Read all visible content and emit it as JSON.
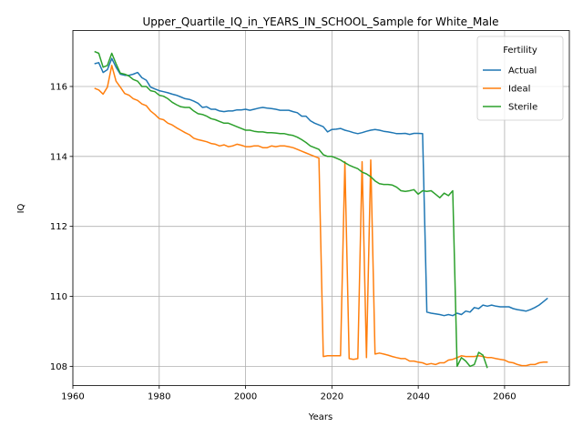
{
  "chart_data": {
    "type": "line",
    "title": "Upper_Quartile_IQ_in_YEARS_IN_SCHOOL_Sample for White_Male",
    "xlabel": "Years",
    "ylabel": "IQ",
    "xlim": [
      1960,
      2075
    ],
    "ylim": [
      107.45,
      117.6
    ],
    "xticks": [
      1960,
      1980,
      2000,
      2020,
      2040,
      2060
    ],
    "yticks": [
      108,
      110,
      112,
      114,
      116
    ],
    "grid": true,
    "legend": {
      "title": "Fertility",
      "placement": "top-right"
    },
    "series": [
      {
        "name": "Actual",
        "color": "#1f77b4",
        "points": [
          [
            1965,
            116.65
          ],
          [
            1966,
            116.68
          ],
          [
            1967,
            116.4
          ],
          [
            1968,
            116.48
          ],
          [
            1969,
            116.8
          ],
          [
            1970,
            116.55
          ],
          [
            1971,
            116.35
          ],
          [
            1972,
            116.32
          ],
          [
            1973,
            116.32
          ],
          [
            1974,
            116.35
          ],
          [
            1975,
            116.4
          ],
          [
            1976,
            116.25
          ],
          [
            1977,
            116.18
          ],
          [
            1978,
            115.98
          ],
          [
            1979,
            115.93
          ],
          [
            1980,
            115.88
          ],
          [
            1981,
            115.85
          ],
          [
            1982,
            115.82
          ],
          [
            1983,
            115.78
          ],
          [
            1984,
            115.75
          ],
          [
            1985,
            115.7
          ],
          [
            1986,
            115.65
          ],
          [
            1987,
            115.63
          ],
          [
            1988,
            115.58
          ],
          [
            1989,
            115.52
          ],
          [
            1990,
            115.4
          ],
          [
            1991,
            115.42
          ],
          [
            1992,
            115.35
          ],
          [
            1993,
            115.35
          ],
          [
            1994,
            115.3
          ],
          [
            1995,
            115.28
          ],
          [
            1996,
            115.3
          ],
          [
            1997,
            115.3
          ],
          [
            1998,
            115.33
          ],
          [
            1999,
            115.33
          ],
          [
            2000,
            115.35
          ],
          [
            2001,
            115.32
          ],
          [
            2002,
            115.35
          ],
          [
            2003,
            115.38
          ],
          [
            2004,
            115.4
          ],
          [
            2005,
            115.38
          ],
          [
            2006,
            115.37
          ],
          [
            2007,
            115.35
          ],
          [
            2008,
            115.32
          ],
          [
            2009,
            115.32
          ],
          [
            2010,
            115.32
          ],
          [
            2011,
            115.28
          ],
          [
            2012,
            115.25
          ],
          [
            2013,
            115.15
          ],
          [
            2014,
            115.15
          ],
          [
            2015,
            115.02
          ],
          [
            2016,
            114.95
          ],
          [
            2017,
            114.9
          ],
          [
            2018,
            114.85
          ],
          [
            2019,
            114.7
          ],
          [
            2020,
            114.77
          ],
          [
            2021,
            114.78
          ],
          [
            2022,
            114.8
          ],
          [
            2023,
            114.75
          ],
          [
            2024,
            114.72
          ],
          [
            2025,
            114.68
          ],
          [
            2026,
            114.65
          ],
          [
            2027,
            114.68
          ],
          [
            2028,
            114.72
          ],
          [
            2029,
            114.75
          ],
          [
            2030,
            114.77
          ],
          [
            2031,
            114.75
          ],
          [
            2032,
            114.72
          ],
          [
            2033,
            114.7
          ],
          [
            2034,
            114.68
          ],
          [
            2035,
            114.65
          ],
          [
            2036,
            114.65
          ],
          [
            2037,
            114.66
          ],
          [
            2038,
            114.63
          ],
          [
            2039,
            114.66
          ],
          [
            2040,
            114.66
          ],
          [
            2041,
            114.65
          ],
          [
            2042,
            109.55
          ],
          [
            2043,
            109.52
          ],
          [
            2044,
            109.5
          ],
          [
            2045,
            109.48
          ],
          [
            2046,
            109.45
          ],
          [
            2047,
            109.48
          ],
          [
            2048,
            109.45
          ],
          [
            2049,
            109.52
          ],
          [
            2050,
            109.48
          ],
          [
            2051,
            109.58
          ],
          [
            2052,
            109.55
          ],
          [
            2053,
            109.68
          ],
          [
            2054,
            109.65
          ],
          [
            2055,
            109.75
          ],
          [
            2056,
            109.72
          ],
          [
            2057,
            109.75
          ],
          [
            2058,
            109.72
          ],
          [
            2059,
            109.7
          ],
          [
            2060,
            109.7
          ],
          [
            2061,
            109.7
          ],
          [
            2062,
            109.65
          ],
          [
            2063,
            109.62
          ],
          [
            2064,
            109.6
          ],
          [
            2065,
            109.58
          ],
          [
            2066,
            109.62
          ],
          [
            2067,
            109.68
          ],
          [
            2068,
            109.75
          ],
          [
            2069,
            109.85
          ],
          [
            2070,
            109.95
          ]
        ]
      },
      {
        "name": "Ideal",
        "color": "#ff7f0e",
        "points": [
          [
            1965,
            115.95
          ],
          [
            1966,
            115.9
          ],
          [
            1967,
            115.78
          ],
          [
            1968,
            115.98
          ],
          [
            1969,
            116.6
          ],
          [
            1970,
            116.15
          ],
          [
            1971,
            115.98
          ],
          [
            1972,
            115.8
          ],
          [
            1973,
            115.75
          ],
          [
            1974,
            115.65
          ],
          [
            1975,
            115.6
          ],
          [
            1976,
            115.5
          ],
          [
            1977,
            115.45
          ],
          [
            1978,
            115.3
          ],
          [
            1979,
            115.2
          ],
          [
            1980,
            115.08
          ],
          [
            1981,
            115.05
          ],
          [
            1982,
            114.95
          ],
          [
            1983,
            114.9
          ],
          [
            1984,
            114.82
          ],
          [
            1985,
            114.75
          ],
          [
            1986,
            114.68
          ],
          [
            1987,
            114.62
          ],
          [
            1988,
            114.52
          ],
          [
            1989,
            114.48
          ],
          [
            1990,
            114.45
          ],
          [
            1991,
            114.42
          ],
          [
            1992,
            114.37
          ],
          [
            1993,
            114.35
          ],
          [
            1994,
            114.3
          ],
          [
            1995,
            114.33
          ],
          [
            1996,
            114.28
          ],
          [
            1997,
            114.3
          ],
          [
            1998,
            114.35
          ],
          [
            1999,
            114.32
          ],
          [
            2000,
            114.28
          ],
          [
            2001,
            114.28
          ],
          [
            2002,
            114.3
          ],
          [
            2003,
            114.3
          ],
          [
            2004,
            114.25
          ],
          [
            2005,
            114.25
          ],
          [
            2006,
            114.3
          ],
          [
            2007,
            114.28
          ],
          [
            2008,
            114.3
          ],
          [
            2009,
            114.3
          ],
          [
            2010,
            114.28
          ],
          [
            2011,
            114.25
          ],
          [
            2012,
            114.2
          ],
          [
            2013,
            114.15
          ],
          [
            2014,
            114.1
          ],
          [
            2015,
            114.05
          ],
          [
            2016,
            114.0
          ],
          [
            2017,
            113.95
          ],
          [
            2018,
            108.28
          ],
          [
            2019,
            108.3
          ],
          [
            2020,
            108.3
          ],
          [
            2021,
            108.3
          ],
          [
            2022,
            108.3
          ],
          [
            2023,
            113.85
          ],
          [
            2024,
            108.22
          ],
          [
            2025,
            108.2
          ],
          [
            2026,
            108.22
          ],
          [
            2027,
            113.85
          ],
          [
            2028,
            108.25
          ],
          [
            2029,
            113.9
          ],
          [
            2030,
            108.35
          ],
          [
            2031,
            108.38
          ],
          [
            2032,
            108.35
          ],
          [
            2033,
            108.32
          ],
          [
            2034,
            108.28
          ],
          [
            2035,
            108.25
          ],
          [
            2036,
            108.22
          ],
          [
            2037,
            108.22
          ],
          [
            2038,
            108.15
          ],
          [
            2039,
            108.15
          ],
          [
            2040,
            108.12
          ],
          [
            2041,
            108.1
          ],
          [
            2042,
            108.05
          ],
          [
            2043,
            108.08
          ],
          [
            2044,
            108.05
          ],
          [
            2045,
            108.1
          ],
          [
            2046,
            108.1
          ],
          [
            2047,
            108.18
          ],
          [
            2048,
            108.2
          ],
          [
            2049,
            108.25
          ],
          [
            2050,
            108.3
          ],
          [
            2051,
            108.28
          ],
          [
            2052,
            108.28
          ],
          [
            2053,
            108.28
          ],
          [
            2054,
            108.3
          ],
          [
            2055,
            108.28
          ],
          [
            2056,
            108.25
          ],
          [
            2057,
            108.25
          ],
          [
            2058,
            108.22
          ],
          [
            2059,
            108.2
          ],
          [
            2060,
            108.18
          ],
          [
            2061,
            108.12
          ],
          [
            2062,
            108.1
          ],
          [
            2063,
            108.05
          ],
          [
            2064,
            108.02
          ],
          [
            2065,
            108.02
          ],
          [
            2066,
            108.05
          ],
          [
            2067,
            108.05
          ],
          [
            2068,
            108.1
          ],
          [
            2069,
            108.12
          ],
          [
            2070,
            108.12
          ]
        ]
      },
      {
        "name": "Sterile",
        "color": "#2ca02c",
        "points": [
          [
            1965,
            117.0
          ],
          [
            1966,
            116.95
          ],
          [
            1967,
            116.55
          ],
          [
            1968,
            116.6
          ],
          [
            1969,
            116.95
          ],
          [
            1970,
            116.65
          ],
          [
            1971,
            116.38
          ],
          [
            1972,
            116.35
          ],
          [
            1973,
            116.3
          ],
          [
            1974,
            116.2
          ],
          [
            1975,
            116.15
          ],
          [
            1976,
            116.0
          ],
          [
            1977,
            116.0
          ],
          [
            1978,
            115.88
          ],
          [
            1979,
            115.85
          ],
          [
            1980,
            115.75
          ],
          [
            1981,
            115.72
          ],
          [
            1982,
            115.65
          ],
          [
            1983,
            115.55
          ],
          [
            1984,
            115.48
          ],
          [
            1985,
            115.42
          ],
          [
            1986,
            115.4
          ],
          [
            1987,
            115.4
          ],
          [
            1988,
            115.3
          ],
          [
            1989,
            115.22
          ],
          [
            1990,
            115.2
          ],
          [
            1991,
            115.15
          ],
          [
            1992,
            115.08
          ],
          [
            1993,
            115.05
          ],
          [
            1994,
            115.0
          ],
          [
            1995,
            114.95
          ],
          [
            1996,
            114.95
          ],
          [
            1997,
            114.9
          ],
          [
            1998,
            114.85
          ],
          [
            1999,
            114.8
          ],
          [
            2000,
            114.75
          ],
          [
            2001,
            114.75
          ],
          [
            2002,
            114.72
          ],
          [
            2003,
            114.7
          ],
          [
            2004,
            114.7
          ],
          [
            2005,
            114.68
          ],
          [
            2006,
            114.68
          ],
          [
            2007,
            114.67
          ],
          [
            2008,
            114.65
          ],
          [
            2009,
            114.65
          ],
          [
            2010,
            114.62
          ],
          [
            2011,
            114.6
          ],
          [
            2012,
            114.55
          ],
          [
            2013,
            114.48
          ],
          [
            2014,
            114.4
          ],
          [
            2015,
            114.3
          ],
          [
            2016,
            114.25
          ],
          [
            2017,
            114.2
          ],
          [
            2018,
            114.05
          ],
          [
            2019,
            114.0
          ],
          [
            2020,
            114.0
          ],
          [
            2021,
            113.95
          ],
          [
            2022,
            113.9
          ],
          [
            2023,
            113.82
          ],
          [
            2024,
            113.75
          ],
          [
            2025,
            113.7
          ],
          [
            2026,
            113.65
          ],
          [
            2027,
            113.55
          ],
          [
            2028,
            113.5
          ],
          [
            2029,
            113.42
          ],
          [
            2030,
            113.3
          ],
          [
            2031,
            113.22
          ],
          [
            2032,
            113.2
          ],
          [
            2033,
            113.2
          ],
          [
            2034,
            113.18
          ],
          [
            2035,
            113.12
          ],
          [
            2036,
            113.02
          ],
          [
            2037,
            113.0
          ],
          [
            2038,
            113.02
          ],
          [
            2039,
            113.05
          ],
          [
            2040,
            112.92
          ],
          [
            2041,
            113.02
          ],
          [
            2042,
            113.0
          ],
          [
            2043,
            113.02
          ],
          [
            2044,
            112.92
          ],
          [
            2045,
            112.82
          ],
          [
            2046,
            112.95
          ],
          [
            2047,
            112.88
          ],
          [
            2048,
            113.02
          ],
          [
            2049,
            108.0
          ],
          [
            2050,
            108.25
          ],
          [
            2051,
            108.15
          ],
          [
            2052,
            108.0
          ],
          [
            2053,
            108.05
          ],
          [
            2054,
            108.4
          ],
          [
            2055,
            108.32
          ],
          [
            2056,
            107.95
          ]
        ]
      }
    ]
  }
}
